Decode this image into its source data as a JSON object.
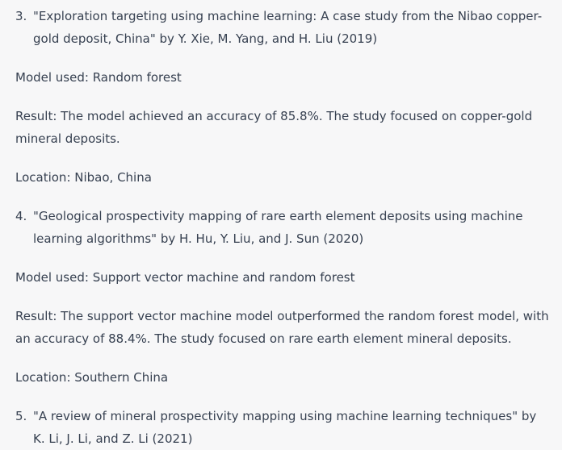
{
  "items": [
    {
      "number": "3.",
      "text": "\"Exploration targeting using machine learning: A case study from the Nibao copper-gold deposit, China\" by Y. Xie, M. Yang, and H. Liu (2019)",
      "model": "Model used: Random forest",
      "result": "Result: The model achieved an accuracy of 85.8%. The study focused on copper-gold mineral deposits.",
      "location": "Location: Nibao, China"
    },
    {
      "number": "4.",
      "text": "\"Geological prospectivity mapping of rare earth element deposits using machine learning algorithms\" by H. Hu, Y. Liu, and J. Sun (2020)",
      "model": "Model used: Support vector machine and random forest",
      "result": "Result: The support vector machine model outperformed the random forest model, with an accuracy of 88.4%. The study focused on rare earth element mineral deposits.",
      "location": "Location: Southern China"
    },
    {
      "number": "5.",
      "text": "\"A review of mineral prospectivity mapping using machine learning techniques\" by K. Li, J. Li, and Z. Li (2021)"
    }
  ]
}
